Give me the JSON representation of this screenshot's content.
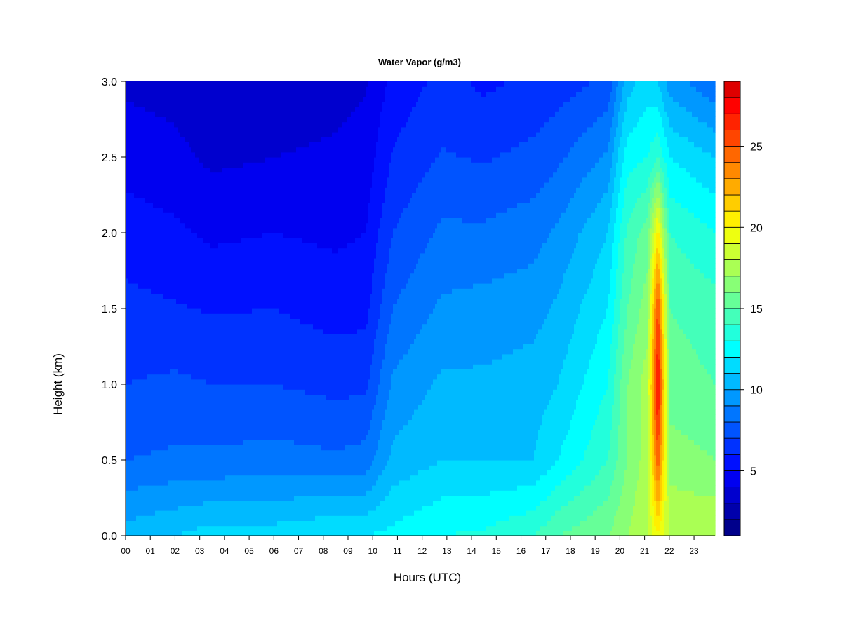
{
  "chart_data": {
    "type": "heatmap",
    "title": "Water Vapor (g/m3)",
    "xlabel": "Hours (UTC)",
    "ylabel": "Height (km)",
    "x_ticks": [
      "00",
      "01",
      "02",
      "03",
      "04",
      "05",
      "06",
      "07",
      "08",
      "09",
      "10",
      "11",
      "12",
      "13",
      "14",
      "15",
      "16",
      "17",
      "18",
      "19",
      "20",
      "21",
      "22",
      "23"
    ],
    "x_range": [
      0,
      23.85
    ],
    "y_ticks": [
      "0.0",
      "0.5",
      "1.0",
      "1.5",
      "2.0",
      "2.5",
      "3.0"
    ],
    "y_range": [
      0,
      3.0
    ],
    "colorbar": {
      "ticks": [
        "5",
        "10",
        "15",
        "20",
        "25"
      ],
      "tick_values": [
        5,
        10,
        15,
        20,
        25
      ],
      "range": [
        1,
        29
      ],
      "levels": [
        1,
        2,
        3,
        4,
        5,
        6,
        7,
        8,
        9,
        10,
        11,
        12,
        13,
        14,
        15,
        16,
        17,
        18,
        19,
        20,
        21,
        22,
        23,
        24,
        25,
        26,
        27,
        28,
        29
      ],
      "colors": [
        "#00008B",
        "#0000AB",
        "#0000CE",
        "#0000F0",
        "#0010FF",
        "#0032FF",
        "#0054FF",
        "#0076FF",
        "#0098FF",
        "#00BAFF",
        "#00DCFF",
        "#00FFFF",
        "#22FFDC",
        "#44FFBA",
        "#66FF98",
        "#88FF76",
        "#AAFF54",
        "#CCFF32",
        "#EEFF10",
        "#FFEF00",
        "#FFCD00",
        "#FFAB00",
        "#FF8900",
        "#FF6700",
        "#FF4500",
        "#FF2300",
        "#FF0100",
        "#DE0000",
        "#B30000",
        "#8B0000"
      ]
    },
    "profiles": [
      {
        "hour": 0,
        "surface": 10.5,
        "h05": 8.0,
        "h10": 7.0,
        "h15": 6.3,
        "h20": 5.5,
        "h25": 4.6,
        "h30": 3.8
      },
      {
        "hour": 2,
        "surface": 11.0,
        "h05": 8.2,
        "h10": 7.2,
        "h15": 6.1,
        "h20": 5.2,
        "h25": 4.3,
        "h30": 3.6
      },
      {
        "hour": 3.5,
        "surface": 11.5,
        "h05": 8.2,
        "h10": 7.0,
        "h15": 5.9,
        "h20": 4.8,
        "h25": 3.8,
        "h30": 3.0
      },
      {
        "hour": 6,
        "surface": 11.5,
        "h05": 8.4,
        "h10": 7.0,
        "h15": 6.0,
        "h20": 5.0,
        "h25": 4.0,
        "h30": 3.2
      },
      {
        "hour": 8.5,
        "surface": 12.0,
        "h05": 8.2,
        "h10": 6.7,
        "h15": 5.6,
        "h20": 4.8,
        "h25": 4.2,
        "h30": 3.6
      },
      {
        "hour": 9.7,
        "surface": 12.0,
        "h05": 8.4,
        "h10": 6.8,
        "h15": 5.7,
        "h20": 5.0,
        "h25": 4.4,
        "h30": 3.9
      },
      {
        "hour": 10.8,
        "surface": 12.3,
        "h05": 10.3,
        "h10": 9.2,
        "h15": 8.0,
        "h20": 7.0,
        "h25": 6.1,
        "h30": 5.3
      },
      {
        "hour": 12.8,
        "surface": 13.0,
        "h05": 11.0,
        "h10": 10.2,
        "h15": 9.2,
        "h20": 8.2,
        "h25": 7.1,
        "h30": 6.3
      },
      {
        "hour": 14.5,
        "surface": 13.2,
        "h05": 11.0,
        "h10": 10.2,
        "h15": 9.4,
        "h20": 8.2,
        "h25": 6.9,
        "h30": 5.8
      },
      {
        "hour": 16.5,
        "surface": 14.0,
        "h05": 11.0,
        "h10": 10.5,
        "h15": 9.6,
        "h20": 8.6,
        "h25": 7.3,
        "h30": 6.2
      },
      {
        "hour": 17.5,
        "surface": 15.0,
        "h05": 12.0,
        "h10": 11.0,
        "h15": 10.2,
        "h20": 9.2,
        "h25": 7.8,
        "h30": 6.5
      },
      {
        "hour": 19.5,
        "surface": 16.0,
        "h05": 14.0,
        "h10": 13.0,
        "h15": 12.0,
        "h20": 11.0,
        "h25": 9.2,
        "h30": 7.2
      },
      {
        "hour": 20.3,
        "surface": 17.0,
        "h05": 16.0,
        "h10": 16.0,
        "h15": 15.0,
        "h20": 14.2,
        "h25": 12.6,
        "h30": 10.5
      },
      {
        "hour": 21.1,
        "surface": 18.0,
        "h05": 17.5,
        "h10": 17.5,
        "h15": 16.5,
        "h20": 15.5,
        "h25": 13.0,
        "h30": 11.5
      },
      {
        "hour": 21.55,
        "surface": 20.0,
        "h05": 25.0,
        "h10": 28.0,
        "h15": 25.5,
        "h20": 20.5,
        "h25": 14.0,
        "h30": 11.0
      },
      {
        "hour": 22.0,
        "surface": 18.0,
        "h05": 16.5,
        "h10": 15.5,
        "h15": 15.0,
        "h20": 14.0,
        "h25": 12.0,
        "h30": 9.5
      },
      {
        "hour": 23.85,
        "surface": 18.0,
        "h05": 16.0,
        "h10": 15.0,
        "h15": 14.5,
        "h20": 13.0,
        "h25": 11.0,
        "h30": 8.2
      }
    ]
  }
}
